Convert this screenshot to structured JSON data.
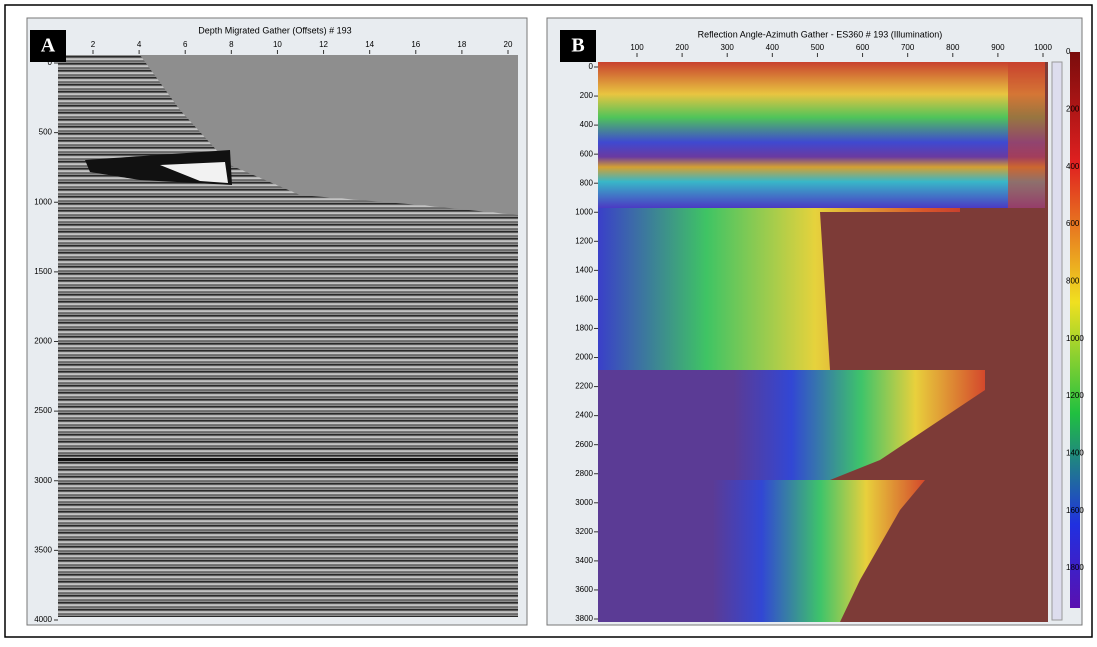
{
  "panels": [
    {
      "label": "A",
      "title": "Depth Migrated Gather (Offsets) # 193",
      "top_ticks": [
        "2",
        "4",
        "6",
        "8",
        "10",
        "12",
        "14",
        "16",
        "18",
        "20"
      ],
      "left_ticks": [
        "0",
        "500",
        "1000",
        "1500",
        "2000",
        "2500",
        "3000",
        "3500",
        "4000"
      ]
    },
    {
      "label": "B",
      "title": "Reflection Angle-Azimuth Gather - ES360 # 193 (Illumination)",
      "top_ticks": [
        "100",
        "200",
        "300",
        "400",
        "500",
        "600",
        "700",
        "800",
        "900",
        "1000"
      ],
      "left_ticks": [
        "0",
        "200",
        "400",
        "600",
        "800",
        "1000",
        "1200",
        "1400",
        "1600",
        "1800",
        "2000",
        "2200",
        "2400",
        "2600",
        "2800",
        "3000",
        "3200",
        "3400",
        "3600",
        "3800"
      ],
      "colorbar_ticks": [
        "0",
        "200",
        "400",
        "600",
        "800",
        "1000",
        "1200",
        "1400",
        "1600",
        "1800"
      ]
    }
  ]
}
